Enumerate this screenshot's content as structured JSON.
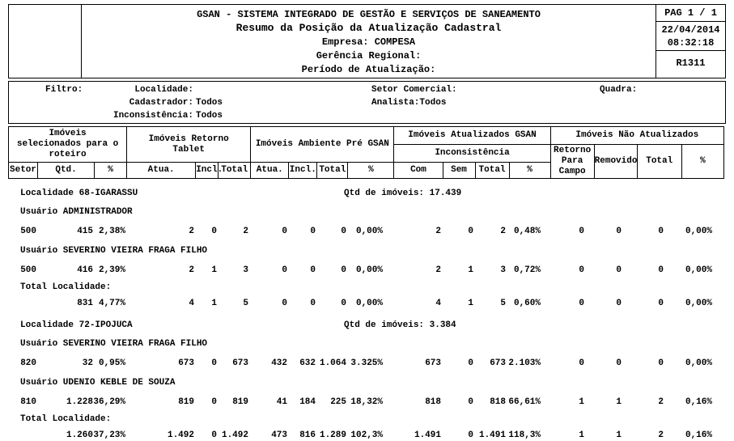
{
  "header": {
    "system_title": "GSAN - SISTEMA INTEGRADO DE GESTÃO E SERVIÇOS DE SANEAMENTO",
    "report_title": "Resumo da Posição da Atualização Cadastral",
    "empresa_label": "Empresa:",
    "empresa_value": "COMPESA",
    "gerencia_label": "Gerência Regional:",
    "periodo_label": "Período de Atualização:",
    "page": "PAG 1 / 1",
    "date": "22/04/2014",
    "time": "08:32:18",
    "report_code": "R1311"
  },
  "filters": {
    "filtro_label": "Filtro:",
    "localidade_label": "Localidade:",
    "localidade_value": "",
    "setor_comercial_label": "Setor Comercial:",
    "setor_comercial_value": "",
    "quadra_label": "Quadra:",
    "quadra_value": "",
    "cadastrador_label": "Cadastrador:",
    "cadastrador_value": "Todos",
    "analista_label": "Analista:",
    "analista_value": "Todos",
    "inconsistencia_label": "Inconsistência:",
    "inconsistencia_value": "Todos"
  },
  "table": {
    "group1": {
      "title": "Imóveis\nselecionados para o\nroteiro",
      "cols": [
        "Setor",
        "Qtd.",
        "%"
      ]
    },
    "group2": {
      "title": "Imóveis Retorno\nTablet",
      "cols": [
        "Atua.",
        "Incl.",
        "Total"
      ]
    },
    "group3": {
      "title": "Imóveis Ambiente Pré GSAN",
      "cols": [
        "Atua.",
        "Incl.",
        "Total",
        "%"
      ]
    },
    "group4": {
      "title": "Imóveis Atualizados GSAN",
      "subtitle": "Inconsistência",
      "cols": [
        "Com",
        "Sem",
        "Total",
        "%"
      ]
    },
    "group5": {
      "title": "Imóveis Não Atualizados",
      "cols": [
        "Retorno\nPara\nCampo",
        "Removido",
        "Total",
        "%"
      ]
    }
  },
  "body": {
    "lines": [
      {
        "type": "localidade",
        "label": "Localidade 68-IGARASSU",
        "qtd_label": "Qtd de imóveis:",
        "qtd_value": "17.439"
      },
      {
        "type": "usuario",
        "label": "Usuário ADMINISTRADOR"
      },
      {
        "type": "data",
        "cells": [
          "500",
          "415",
          "2,38%",
          "2",
          "0",
          "2",
          "0",
          "0",
          "0",
          "0,00%",
          "2",
          "0",
          "2",
          "0,48%",
          "0",
          "0",
          "0",
          "0,00%"
        ]
      },
      {
        "type": "usuario",
        "label": "Usuário SEVERINO VIEIRA FRAGA FILHO"
      },
      {
        "type": "data",
        "cells": [
          "500",
          "416",
          "2,39%",
          "2",
          "1",
          "3",
          "0",
          "0",
          "0",
          "0,00%",
          "2",
          "1",
          "3",
          "0,72%",
          "0",
          "0",
          "0",
          "0,00%"
        ]
      },
      {
        "type": "total",
        "label": "Total Localidade:"
      },
      {
        "type": "data",
        "cells": [
          "",
          "831",
          "4,77%",
          "4",
          "1",
          "5",
          "0",
          "0",
          "0",
          "0,00%",
          "4",
          "1",
          "5",
          "0,60%",
          "0",
          "0",
          "0",
          "0,00%"
        ]
      },
      {
        "type": "localidade",
        "label": "Localidade 72-IPOJUCA",
        "qtd_label": "Qtd de imóveis:",
        "qtd_value": "3.384"
      },
      {
        "type": "usuario",
        "label": "Usuário SEVERINO VIEIRA FRAGA FILHO"
      },
      {
        "type": "data",
        "cells": [
          "820",
          "32",
          "0,95%",
          "673",
          "0",
          "673",
          "432",
          "632",
          "1.064",
          "3.325%",
          "673",
          "0",
          "673",
          "2.103%",
          "0",
          "0",
          "0",
          "0,00%"
        ]
      },
      {
        "type": "usuario",
        "label": "Usuário UDENIO KEBLE DE SOUZA"
      },
      {
        "type": "data",
        "cells": [
          "810",
          "1.228",
          "36,29%",
          "819",
          "0",
          "819",
          "41",
          "184",
          "225",
          "18,32%",
          "818",
          "0",
          "818",
          "66,61%",
          "1",
          "1",
          "2",
          "0,16%"
        ]
      },
      {
        "type": "total",
        "label": "Total Localidade:"
      },
      {
        "type": "data",
        "cells": [
          "",
          "1.260",
          "37,23%",
          "1.492",
          "0",
          "1.492",
          "473",
          "816",
          "1.289",
          "102,3%",
          "1.491",
          "0",
          "1.491",
          "118,3%",
          "1",
          "1",
          "2",
          "0,16%"
        ]
      }
    ]
  }
}
